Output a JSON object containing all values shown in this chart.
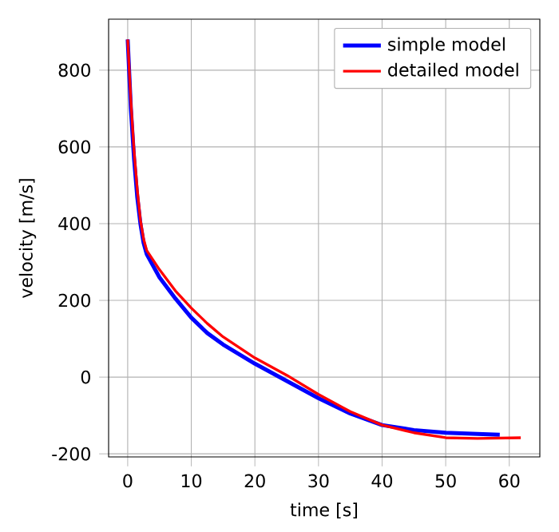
{
  "chart_data": {
    "type": "line",
    "xlabel": "time [s]",
    "ylabel": "velocity [m/s]",
    "xlim": [
      -3,
      64.8
    ],
    "ylim": [
      -208,
      933
    ],
    "xticks": [
      0,
      10,
      20,
      30,
      40,
      50,
      60
    ],
    "yticks": [
      -200,
      0,
      200,
      400,
      600,
      800
    ],
    "grid": true,
    "legend": "top right",
    "series": [
      {
        "name": "simple model",
        "color": "#0000ff",
        "x": [
          0,
          0.5,
          1,
          1.5,
          2,
          2.5,
          3,
          5,
          7.5,
          10,
          12.5,
          15,
          20,
          25,
          30,
          35,
          40,
          45,
          50,
          55,
          58.5
        ],
        "values": [
          880,
          700,
          570,
          470,
          400,
          350,
          320,
          260,
          205,
          155,
          115,
          85,
          35,
          -10,
          -55,
          -95,
          -125,
          -138,
          -145,
          -148,
          -150
        ]
      },
      {
        "name": "detailed model",
        "color": "#ff0000",
        "x": [
          0,
          0.5,
          1,
          1.5,
          2,
          2.5,
          3,
          5,
          7.5,
          10,
          12.5,
          15,
          20,
          25,
          30,
          35,
          40,
          45,
          50,
          55,
          61.8
        ],
        "values": [
          880,
          720,
          590,
          490,
          410,
          360,
          330,
          280,
          225,
          180,
          140,
          105,
          50,
          5,
          -45,
          -90,
          -125,
          -145,
          -158,
          -160,
          -158
        ]
      }
    ]
  }
}
